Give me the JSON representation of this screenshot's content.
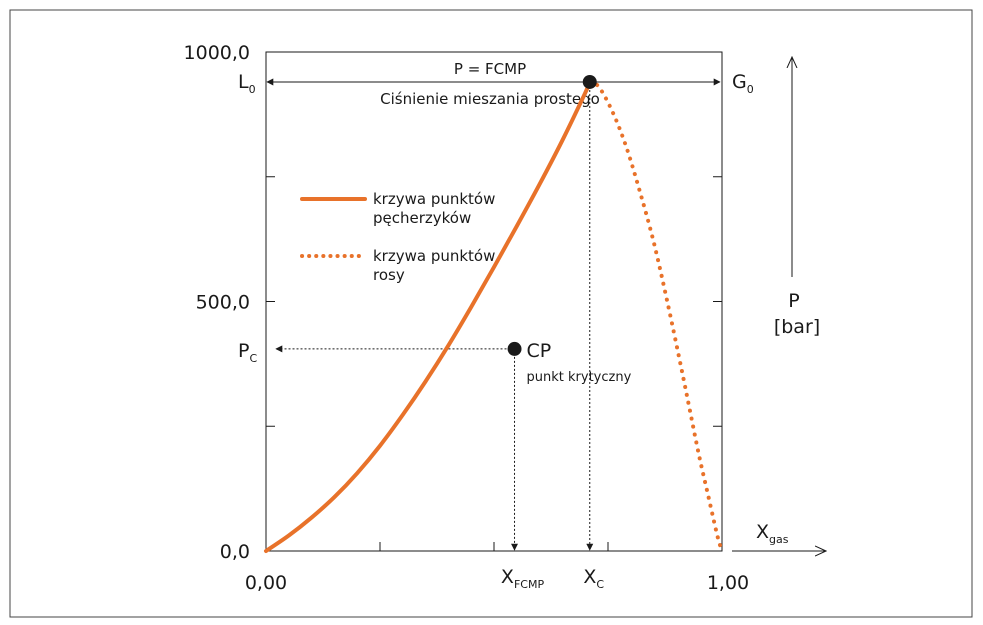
{
  "chart_data": {
    "type": "line",
    "xlim": [
      0,
      1
    ],
    "ylim": [
      0,
      1000
    ],
    "x_tick_labels": {
      "start": "0,00",
      "end": "1,00"
    },
    "y_tick_labels": [
      "0,0",
      "500,0",
      "1000,0"
    ],
    "y_tick_values": [
      0,
      250,
      500,
      750,
      1000
    ],
    "x_tick_values": [
      0,
      0.25,
      0.5,
      0.75,
      1.0
    ],
    "grid": false,
    "legend_position": "top-left",
    "series": [
      {
        "name": "krzywa punktów pęcherzyków",
        "name_lines": [
          "krzywa punktów",
          "pęcherzyków"
        ],
        "style": "solid",
        "color": "#e8722a",
        "points": [
          [
            0,
            0
          ],
          [
            0.05,
            31
          ],
          [
            0.1,
            67
          ],
          [
            0.15,
            108
          ],
          [
            0.2,
            156
          ],
          [
            0.25,
            211
          ],
          [
            0.3,
            273
          ],
          [
            0.35,
            340
          ],
          [
            0.4,
            412
          ],
          [
            0.45,
            489
          ],
          [
            0.5,
            569
          ],
          [
            0.55,
            651
          ],
          [
            0.6,
            735
          ],
          [
            0.65,
            823
          ],
          [
            0.7,
            918
          ],
          [
            0.71,
            940
          ]
        ]
      },
      {
        "name": "krzywa punktów rosy",
        "name_lines": [
          "krzywa punktów",
          "rosy"
        ],
        "style": "dotted",
        "color": "#e8722a",
        "points": [
          [
            0.71,
            940
          ],
          [
            0.73,
            930
          ],
          [
            0.76,
            880
          ],
          [
            0.79,
            810
          ],
          [
            0.82,
            720
          ],
          [
            0.85,
            620
          ],
          [
            0.88,
            500
          ],
          [
            0.91,
            370
          ],
          [
            0.93,
            280
          ],
          [
            0.95,
            190
          ],
          [
            0.97,
            110
          ],
          [
            0.99,
            30
          ],
          [
            1.0,
            0
          ]
        ]
      }
    ],
    "points": [
      {
        "id": "cp",
        "x": 0.545,
        "y": 405,
        "label": "CP",
        "sublabel": "punkt krytyczny"
      },
      {
        "id": "top",
        "x": 0.71,
        "y": 940
      }
    ],
    "annotations": {
      "fcmp_line_y": 940,
      "fcmp_label": "P = FCMP",
      "fcmp_caption": "Ciśnienie mieszania prostego",
      "left_end": {
        "main": "L",
        "sub": "0"
      },
      "right_end": {
        "main": "G",
        "sub": "0"
      },
      "pc_label": {
        "main": "P",
        "sub": "C"
      },
      "x_fcmp_label": {
        "main": "X",
        "sub": "FCMP"
      },
      "x_c_label": {
        "main": "X",
        "sub": "C"
      },
      "x_axis_label": {
        "main": "X",
        "sub": "gas"
      },
      "y_axis_label_lines": [
        "P",
        "[bar]"
      ]
    }
  }
}
